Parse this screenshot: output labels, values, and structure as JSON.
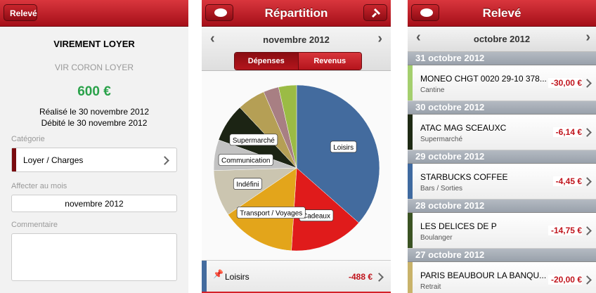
{
  "screens": [
    {
      "header": {
        "back_button": "Relevé"
      },
      "title": "VIREMENT LOYER",
      "subtitle": "VIR CORON LOYER",
      "amount": "600 €",
      "realised": "Réalisé le 30 novembre 2012",
      "debited": "Débité le 30 novembre 2012",
      "category_label": "Catégorie",
      "category": "Loyer / Charges",
      "category_color": "#7a0c10",
      "month_label": "Affecter au mois",
      "month": "novembre 2012",
      "comment_label": "Commentaire"
    },
    {
      "header": {
        "title": "Répartition"
      },
      "month": "novembre 2012",
      "tabs": [
        "Dépenses",
        "Revenus"
      ],
      "pie": {
        "type": "pie",
        "labels": [
          "Loisirs",
          "Cadeaux",
          "Transport / Voyages",
          "Indéfini",
          "Communication",
          "Supermarché",
          null,
          null,
          null
        ],
        "values": [
          36.5,
          14.5,
          14.5,
          9,
          6,
          7.5,
          5.5,
          3,
          3.5
        ],
        "colors": [
          "#436b9e",
          "#e01b1b",
          "#e3a51b",
          "#cbc5b0",
          "#c2c2c2",
          "#1c2414",
          "#b59f55",
          "#a87f83",
          "#9bbb45"
        ]
      },
      "rows": [
        {
          "name": "Loisirs",
          "amount": "-488 €",
          "color": "#436b9e"
        }
      ]
    },
    {
      "header": {
        "title": "Relevé"
      },
      "month": "octobre 2012",
      "groups": [
        {
          "date": "31 octobre 2012",
          "name": "MONEO CHGT 0020 29-10 378...",
          "category": "Cantine",
          "amount": "-30,00 €",
          "color": "#a4cf6e"
        },
        {
          "date": "30 octobre 2012",
          "name": "ATAC MAG SCEAUXC",
          "category": "Supermarché",
          "amount": "-6,14 €",
          "color": "#1e2a14"
        },
        {
          "date": "29 octobre 2012",
          "name": "STARBUCKS COFFEE",
          "category": "Bars / Sorties",
          "amount": "-4,45 €",
          "color": "#3f6aa0"
        },
        {
          "date": "28 octobre 2012",
          "name": "LES DELICES DE P",
          "category": "Boulanger",
          "amount": "-14,75 €",
          "color": "#3b5323"
        },
        {
          "date": "27 octobre 2012",
          "name": "PARIS BEAUBOUR LA BANQU...",
          "category": "Retrait",
          "amount": "-20,00 €",
          "color": "#c9b36a"
        }
      ]
    }
  ]
}
